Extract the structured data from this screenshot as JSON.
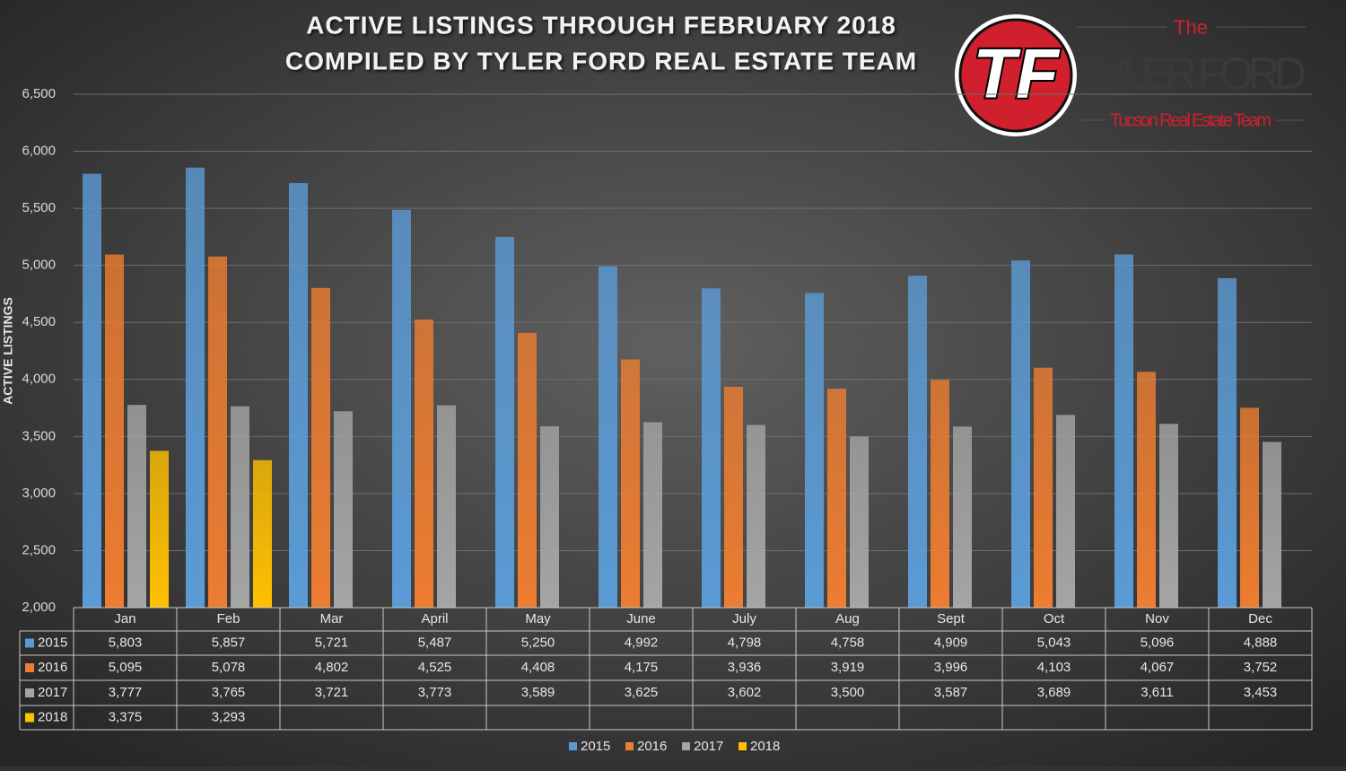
{
  "chart_data": {
    "type": "bar",
    "title": "ACTIVE LISTINGS THROUGH FEBRUARY 2018",
    "subtitle": "COMPILED BY TYLER FORD REAL ESTATE TEAM",
    "ylabel": "ACTIVE LISTINGS",
    "categories": [
      "Jan",
      "Feb",
      "Mar",
      "April",
      "May",
      "June",
      "July",
      "Aug",
      "Sept",
      "Oct",
      "Nov",
      "Dec"
    ],
    "series": [
      {
        "name": "2015",
        "color": "#5b9bd5",
        "values": [
          5803,
          5857,
          5721,
          5487,
          5250,
          4992,
          4798,
          4758,
          4909,
          5043,
          5096,
          4888
        ],
        "value_labels": [
          "5,803",
          "5,857",
          "5,721",
          "5,487",
          "5,250",
          "4,992",
          "4,798",
          "4,758",
          "4,909",
          "5,043",
          "5,096",
          "4,888"
        ]
      },
      {
        "name": "2016",
        "color": "#ed7d31",
        "values": [
          5095,
          5078,
          4802,
          4525,
          4408,
          4175,
          3936,
          3919,
          3996,
          4103,
          4067,
          3752
        ],
        "value_labels": [
          "5,095",
          "5,078",
          "4,802",
          "4,525",
          "4,408",
          "4,175",
          "3,936",
          "3,919",
          "3,996",
          "4,103",
          "4,067",
          "3,752"
        ]
      },
      {
        "name": "2017",
        "color": "#a5a5a5",
        "values": [
          3777,
          3765,
          3721,
          3773,
          3589,
          3625,
          3602,
          3500,
          3587,
          3689,
          3611,
          3453
        ],
        "value_labels": [
          "3,777",
          "3,765",
          "3,721",
          "3,773",
          "3,589",
          "3,625",
          "3,602",
          "3,500",
          "3,587",
          "3,689",
          "3,611",
          "3,453"
        ]
      },
      {
        "name": "2018",
        "color": "#ffc000",
        "values": [
          3375,
          3293,
          null,
          null,
          null,
          null,
          null,
          null,
          null,
          null,
          null,
          null
        ],
        "value_labels": [
          "3,375",
          "3,293",
          null,
          null,
          null,
          null,
          null,
          null,
          null,
          null,
          null,
          null
        ]
      }
    ],
    "ylim": [
      2000,
      6500
    ],
    "yticks": [
      {
        "value": 2000,
        "label": "2,000"
      },
      {
        "value": 2500,
        "label": "2,500"
      },
      {
        "value": 3000,
        "label": "3,000"
      },
      {
        "value": 3500,
        "label": "3,500"
      },
      {
        "value": 4000,
        "label": "4,000"
      },
      {
        "value": 4500,
        "label": "4,500"
      },
      {
        "value": 5000,
        "label": "5,000"
      },
      {
        "value": 5500,
        "label": "5,500"
      },
      {
        "value": 6000,
        "label": "6,000"
      },
      {
        "value": 6500,
        "label": "6,500"
      }
    ],
    "grid": true,
    "legend": "bottom"
  },
  "logo": {
    "mark": "TF",
    "the": "The",
    "name": "TYLER FORD",
    "tagline": "Tucson Real Estate Team"
  }
}
